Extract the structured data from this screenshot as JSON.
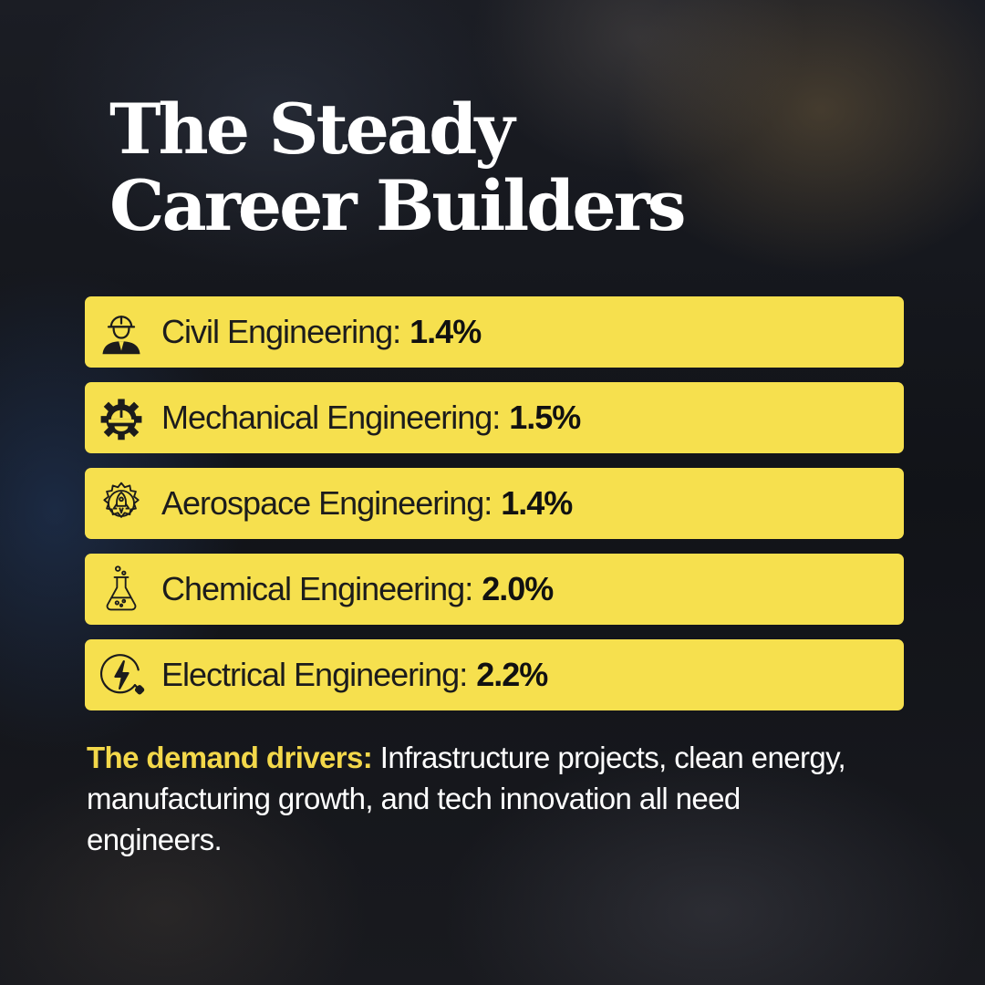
{
  "title": {
    "line1": "The Steady",
    "line2": "Career Builders"
  },
  "accent_color": "#f6e04e",
  "items": [
    {
      "icon": "civil-engineer-icon",
      "label": "Civil Engineering:",
      "value": "1.4%"
    },
    {
      "icon": "gear-hardhat-icon",
      "label": "Mechanical Engineering:",
      "value": "1.5%"
    },
    {
      "icon": "rocket-gear-icon",
      "label": "Aerospace Engineering:",
      "value": "1.4%"
    },
    {
      "icon": "flask-icon",
      "label": "Chemical Engineering:",
      "value": "2.0%"
    },
    {
      "icon": "lightning-plug-icon",
      "label": "Electrical Engineering:",
      "value": "2.2%"
    }
  ],
  "note": {
    "lead": "The demand drivers:",
    "body": "Infrastructure projects, clean energy, manufacturing growth, and tech innovation all need engineers."
  }
}
